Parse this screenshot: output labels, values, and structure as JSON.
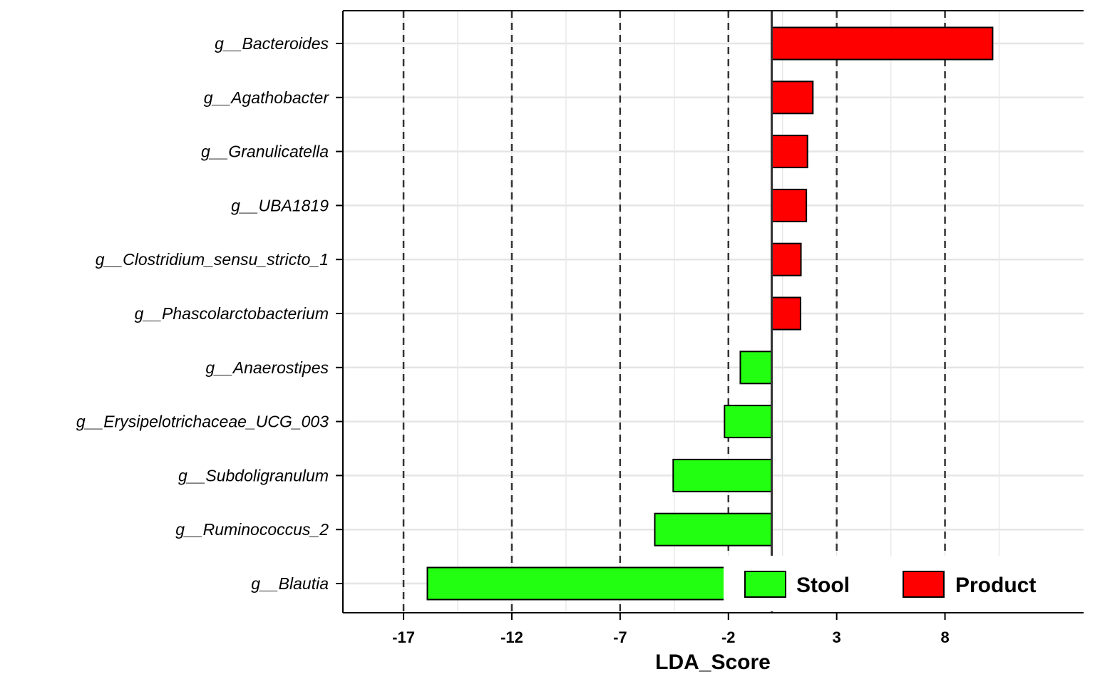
{
  "chart_data": {
    "type": "bar",
    "orientation": "horizontal",
    "xlabel": "LDA_Score",
    "xlim": [
      -19.8,
      14.4
    ],
    "xticks": [
      -17,
      -12,
      -7,
      -2,
      3,
      8
    ],
    "reference_lines": [
      -17,
      -12,
      -7,
      -2,
      3,
      8
    ],
    "zero_line": 0,
    "grid": true,
    "legend_position": "bottom-right inside",
    "categories": [
      "g__Bacteroides",
      "g__Agathobacter",
      "g__Granulicatella",
      "g__UBA1819",
      "g__Clostridium_sensu_stricto_1",
      "g__Phascolarctobacterium",
      "g__Anaerostipes",
      "g__Erysipelotrichaceae_UCG_003",
      "g__Subdoligranulum",
      "g__Ruminococcus_2",
      "g__Blautia"
    ],
    "values": [
      10.2,
      1.9,
      1.65,
      1.6,
      1.35,
      1.33,
      -1.45,
      -2.18,
      -4.55,
      -5.4,
      -15.9
    ],
    "groups": [
      "Product",
      "Product",
      "Product",
      "Product",
      "Product",
      "Product",
      "Stool",
      "Stool",
      "Stool",
      "Stool",
      "Stool"
    ],
    "legend": [
      {
        "label": "Stool",
        "color": "#22ff11"
      },
      {
        "label": "Product",
        "color": "#ff0000"
      }
    ]
  }
}
